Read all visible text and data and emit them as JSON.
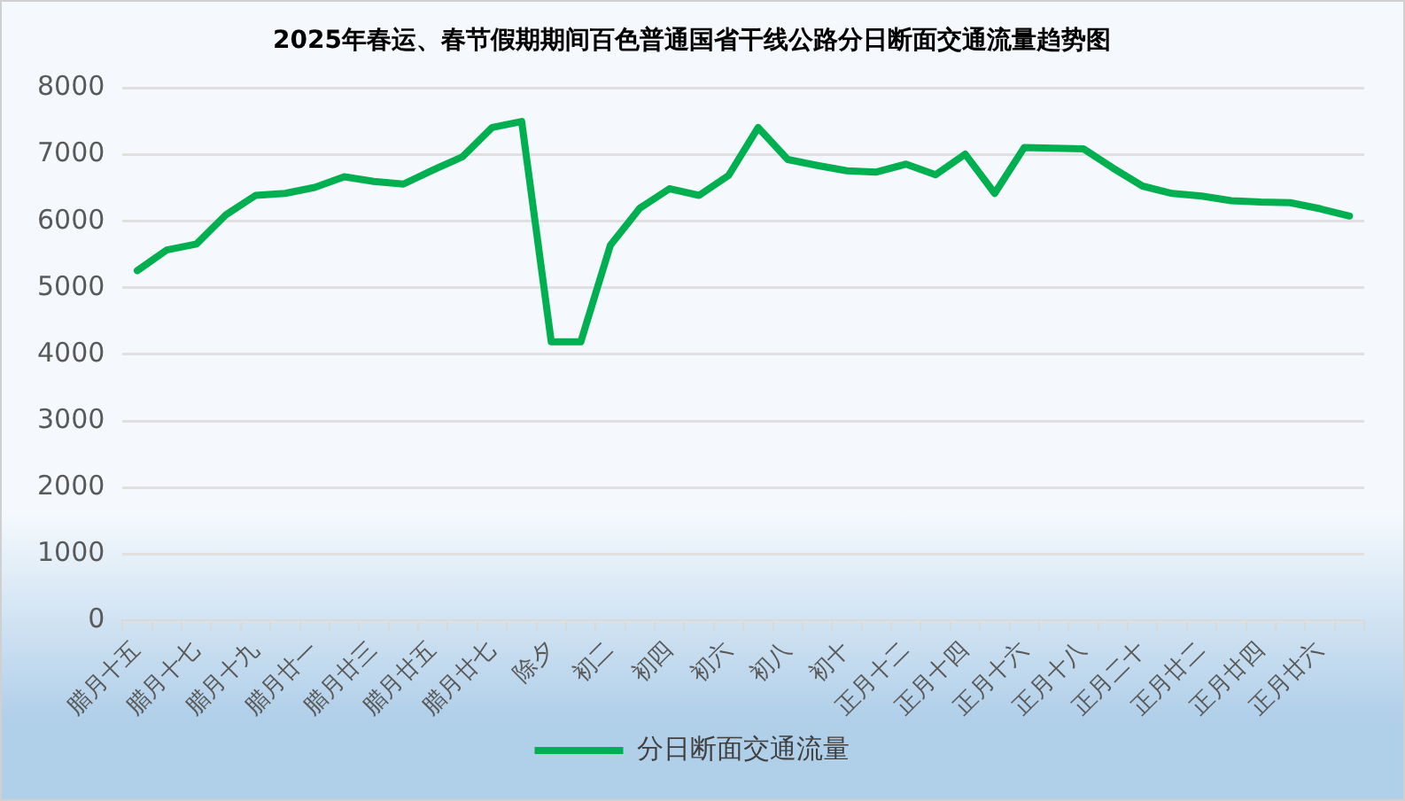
{
  "chart_data": {
    "type": "line",
    "title": "2025年春运、春节假期期间百色普通国省干线公路分日断面交通流量趋势图",
    "categories": [
      "腊月十五",
      null,
      "腊月十七",
      null,
      "腊月十九",
      null,
      "腊月廿一",
      null,
      "腊月廿三",
      null,
      "腊月廿五",
      null,
      "腊月廿七",
      null,
      "除夕",
      null,
      "初二",
      null,
      "初四",
      null,
      "初六",
      null,
      "初八",
      null,
      "初十",
      null,
      "正月十二",
      null,
      "正月十四",
      null,
      "正月十六",
      null,
      "正月十八",
      null,
      "正月二十",
      null,
      "正月廿二",
      null,
      "正月廿四",
      null,
      "正月廿六",
      null
    ],
    "series": [
      {
        "name": "分日断面交通流量",
        "color": "#00b050",
        "values": [
          5260,
          5570,
          5660,
          6100,
          6390,
          6420,
          6510,
          6670,
          6600,
          6560,
          6770,
          6970,
          7410,
          7500,
          4190,
          4190,
          5640,
          6200,
          6490,
          6390,
          6690,
          7410,
          6930,
          6840,
          6760,
          6740,
          6860,
          6700,
          7010,
          6420,
          7110,
          7100,
          7090,
          6800,
          6530,
          6420,
          6380,
          6310,
          6290,
          6280,
          6190,
          6080
        ]
      }
    ],
    "ylim": [
      0,
      8000
    ],
    "yticks": [
      0,
      1000,
      2000,
      3000,
      4000,
      5000,
      6000,
      7000,
      8000
    ],
    "grid": "y",
    "legend": "bottom",
    "marker": "none",
    "line_style": "solid"
  }
}
